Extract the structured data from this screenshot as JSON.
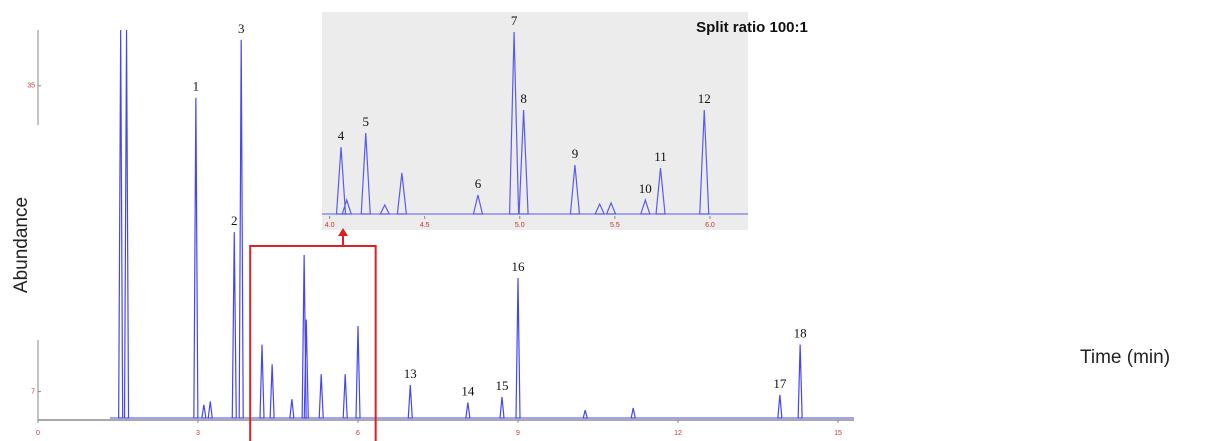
{
  "chart_data": [
    {
      "type": "peaks",
      "x_label": "Time (min)",
      "y_label": "Abundance",
      "color": "#4646ee",
      "xlim": [
        0,
        15.3
      ],
      "xticks": [
        0,
        3,
        6,
        9,
        12,
        15
      ],
      "ylim": [
        4.4,
        40.1
      ],
      "yticks": [
        7,
        35
      ],
      "peaks": {
        "x": [
          1.55,
          1.66,
          2.96,
          3.23,
          3.11,
          3.68,
          3.81,
          4.2,
          4.39,
          4.76,
          4.99,
          5.03,
          5.31,
          5.76,
          6.0,
          6.98,
          8.06,
          8.7,
          9.0,
          10.26,
          11.16,
          13.91,
          14.29
        ],
        "values": [
          40.1,
          40.1,
          33.9,
          6.1,
          5.8,
          21.6,
          39.2,
          11.3,
          9.5,
          6.3,
          19.5,
          13.6,
          8.6,
          8.6,
          13.0,
          7.6,
          6.0,
          6.5,
          17.4,
          5.3,
          5.5,
          6.7,
          11.3
        ],
        "labels": [
          null,
          null,
          "1",
          null,
          null,
          "2",
          "3",
          null,
          null,
          null,
          null,
          null,
          null,
          null,
          null,
          "13",
          "14",
          "15",
          "16",
          null,
          null,
          "17",
          "18"
        ]
      }
    },
    {
      "type": "peaks",
      "title": "Split ratio 100:1",
      "color": "#5a5af0",
      "xlim": [
        3.96,
        6.2
      ],
      "xticks": [
        {
          "value": 4,
          "label": "4.0"
        },
        {
          "value": 4.5,
          "label": "4.5"
        },
        {
          "value": 5,
          "label": "5.0"
        },
        {
          "value": 5.5,
          "label": "5.5"
        },
        {
          "value": 6,
          "label": "6.0"
        }
      ],
      "ylim": [
        0,
        100
      ],
      "peaks": {
        "x": [
          4.06,
          4.09,
          4.19,
          4.29,
          4.38,
          4.78,
          4.97,
          5.02,
          5.29,
          5.42,
          5.48,
          5.66,
          5.74,
          5.97
        ],
        "values": [
          36.4,
          7.6,
          44.0,
          4.9,
          22.3,
          10.3,
          98.9,
          56.5,
          26.6,
          5.4,
          6.0,
          7.6,
          25.0,
          56.5
        ],
        "labels": [
          "4",
          null,
          "5",
          null,
          null,
          "6",
          "7",
          "8",
          "9",
          null,
          null,
          "10",
          "11",
          "12"
        ]
      }
    }
  ]
}
